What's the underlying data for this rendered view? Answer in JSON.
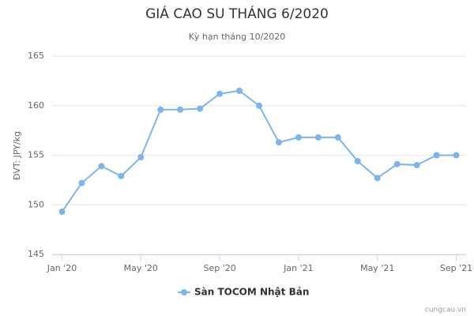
{
  "chart_data": {
    "type": "line",
    "title": "GIÁ CAO SU THÁNG 6/2020",
    "subtitle": "Kỳ hạn tháng 10/2020",
    "y_label": "ĐVT: JPY/kg",
    "credit": "cungcau.vn",
    "categories": [
      "Jan '20",
      null,
      null,
      null,
      "May '20",
      null,
      null,
      null,
      "Sep '20",
      null,
      null,
      null,
      "Jan '21",
      null,
      null,
      null,
      "May '21",
      null,
      null,
      null,
      "Sep '21"
    ],
    "series": [
      {
        "name": "Sàn TOCOM Nhật Bản",
        "color": "#7cb5ec",
        "values": [
          149.3,
          152.2,
          153.9,
          152.9,
          154.8,
          159.6,
          159.6,
          159.7,
          161.2,
          161.5,
          160.0,
          156.3,
          156.8,
          156.8,
          156.8,
          154.4,
          152.7,
          154.1,
          154.0,
          155.0,
          155.0
        ]
      }
    ],
    "ylim": [
      145,
      165
    ],
    "yticks": [
      145,
      150,
      155,
      160,
      165
    ],
    "grid": true,
    "legend": "bottom"
  }
}
